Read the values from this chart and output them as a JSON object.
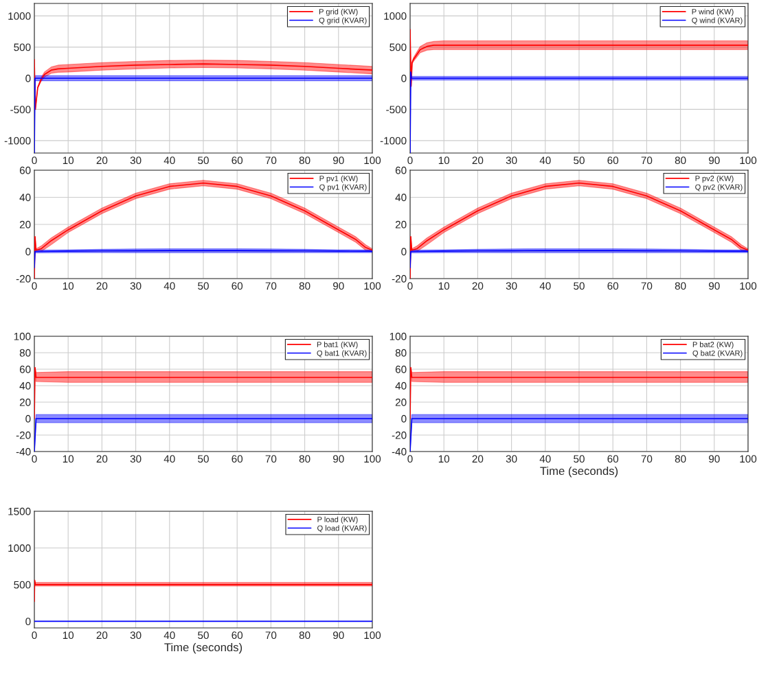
{
  "chart_data": [
    {
      "type": "line",
      "xlim": [
        0,
        100
      ],
      "xticks": [
        0,
        10,
        20,
        30,
        40,
        50,
        60,
        70,
        80,
        90,
        100
      ],
      "ylim": [
        -1200,
        1200
      ],
      "yticks": [
        -1000,
        -500,
        0,
        500,
        1000
      ],
      "grid": true,
      "legend": "top right",
      "series": [
        {
          "name": "P grid (KW)",
          "color": "#ff0000",
          "x": [
            0,
            0.1,
            0.3,
            1,
            2,
            3,
            5,
            7,
            10,
            20,
            30,
            40,
            50,
            60,
            70,
            80,
            90,
            100
          ],
          "values": [
            300,
            0,
            -500,
            -150,
            -20,
            60,
            130,
            150,
            160,
            190,
            210,
            220,
            230,
            220,
            210,
            190,
            160,
            130
          ],
          "lower": [
            300,
            0,
            -500,
            -160,
            -50,
            20,
            80,
            95,
            100,
            130,
            150,
            165,
            170,
            165,
            150,
            130,
            100,
            70
          ],
          "upper": [
            300,
            0,
            -500,
            -140,
            10,
            100,
            180,
            210,
            220,
            250,
            270,
            285,
            290,
            285,
            270,
            250,
            220,
            190
          ]
        },
        {
          "name": "Q grid (KVAR)",
          "color": "#0000ff",
          "x": [
            0,
            0.2,
            10,
            20,
            30,
            40,
            50,
            60,
            70,
            80,
            90,
            100
          ],
          "values": [
            -1200,
            0,
            0,
            0,
            0,
            0,
            0,
            0,
            0,
            0,
            0,
            0
          ],
          "lower": [
            -1200,
            -40,
            -40,
            -40,
            -40,
            -40,
            -40,
            -40,
            -40,
            -40,
            -40,
            -40
          ],
          "upper": [
            -1200,
            40,
            40,
            40,
            40,
            40,
            40,
            40,
            40,
            40,
            40,
            40
          ]
        }
      ]
    },
    {
      "type": "line",
      "xlim": [
        0,
        100
      ],
      "xticks": [
        0,
        10,
        20,
        30,
        40,
        50,
        60,
        70,
        80,
        90,
        100
      ],
      "ylim": [
        -1200,
        1200
      ],
      "yticks": [
        -1000,
        -500,
        0,
        500,
        1000
      ],
      "grid": true,
      "legend": "top right",
      "series": [
        {
          "name": "P wind (KW)",
          "color": "#ff0000",
          "x": [
            0,
            0.3,
            0.6,
            1,
            2,
            3,
            5,
            7,
            10,
            20,
            30,
            40,
            50,
            60,
            70,
            80,
            90,
            100
          ],
          "values": [
            780,
            -130,
            250,
            300,
            380,
            460,
            510,
            530,
            530,
            530,
            530,
            530,
            530,
            530,
            530,
            530,
            530,
            530
          ],
          "lower": [
            780,
            -130,
            230,
            270,
            340,
            410,
            450,
            460,
            460,
            460,
            460,
            460,
            460,
            460,
            460,
            460,
            460,
            460
          ],
          "upper": [
            780,
            -130,
            270,
            330,
            420,
            510,
            570,
            590,
            600,
            600,
            600,
            600,
            600,
            600,
            600,
            600,
            600,
            600
          ]
        },
        {
          "name": "Q wind (KVAR)",
          "color": "#0000ff",
          "x": [
            0,
            0.2,
            0.4,
            10,
            20,
            30,
            40,
            50,
            60,
            70,
            80,
            90,
            100
          ],
          "values": [
            -1200,
            100,
            0,
            0,
            0,
            0,
            0,
            0,
            0,
            0,
            0,
            0,
            0
          ],
          "lower": [
            -1200,
            100,
            -30,
            -30,
            -30,
            -30,
            -30,
            -30,
            -30,
            -30,
            -30,
            -30,
            -30
          ],
          "upper": [
            -1200,
            100,
            30,
            30,
            30,
            30,
            30,
            30,
            30,
            30,
            30,
            30,
            30
          ]
        }
      ]
    },
    {
      "type": "line",
      "xlim": [
        0,
        100
      ],
      "xticks": [
        0,
        10,
        20,
        30,
        40,
        50,
        60,
        70,
        80,
        90,
        100
      ],
      "ylim": [
        -20,
        60
      ],
      "yticks": [
        -20,
        0,
        20,
        40,
        60
      ],
      "grid": true,
      "legend": "top right",
      "series": [
        {
          "name": "P pv1 (KW)",
          "color": "#ff0000",
          "x": [
            0,
            0.2,
            0.5,
            2,
            5,
            10,
            20,
            30,
            40,
            50,
            60,
            70,
            80,
            90,
            95,
            98,
            100
          ],
          "values": [
            -20,
            11,
            1,
            2,
            8,
            16,
            30,
            41,
            48,
            50.5,
            48,
            41,
            30,
            16,
            9,
            3,
            1
          ],
          "lower": [
            -20,
            11,
            0,
            0,
            5,
            14,
            28,
            39,
            46,
            48.5,
            46,
            39,
            28,
            14,
            7,
            1,
            0
          ],
          "upper": [
            -20,
            11,
            2,
            4,
            10,
            18,
            32,
            43,
            50,
            52.5,
            50,
            43,
            32,
            18,
            11,
            5,
            2
          ]
        },
        {
          "name": "Q pv1 (KVAR)",
          "color": "#0000ff",
          "x": [
            0,
            0.2,
            10,
            20,
            30,
            40,
            50,
            60,
            70,
            80,
            90,
            100
          ],
          "values": [
            -12,
            0,
            0.3,
            0.5,
            0.6,
            0.7,
            0.7,
            0.7,
            0.6,
            0.5,
            0.3,
            0.2
          ],
          "lower": [
            -12,
            -1,
            -0.8,
            -0.8,
            -0.9,
            -0.9,
            -0.9,
            -0.9,
            -0.9,
            -0.8,
            -0.8,
            -0.8
          ],
          "upper": [
            -12,
            1,
            1.3,
            1.6,
            1.9,
            2,
            2,
            2,
            1.9,
            1.6,
            1.3,
            1.1
          ]
        }
      ]
    },
    {
      "type": "line",
      "xlim": [
        0,
        100
      ],
      "xticks": [
        0,
        10,
        20,
        30,
        40,
        50,
        60,
        70,
        80,
        90,
        100
      ],
      "ylim": [
        -20,
        60
      ],
      "yticks": [
        -20,
        0,
        20,
        40,
        60
      ],
      "grid": true,
      "legend": "top right",
      "series": [
        {
          "name": "P pv2 (KW)",
          "color": "#ff0000",
          "x": [
            0,
            0.2,
            0.5,
            2,
            5,
            10,
            20,
            30,
            40,
            50,
            60,
            70,
            80,
            90,
            95,
            98,
            100
          ],
          "values": [
            -20,
            11,
            1,
            2,
            8,
            16,
            30,
            41,
            48,
            50.5,
            48,
            41,
            30,
            16,
            9,
            3,
            1
          ],
          "lower": [
            -20,
            11,
            0,
            0,
            5,
            14,
            28,
            39,
            46,
            48.5,
            46,
            39,
            28,
            14,
            7,
            1,
            0
          ],
          "upper": [
            -20,
            11,
            2,
            4,
            10,
            18,
            32,
            43,
            50,
            52.5,
            50,
            43,
            32,
            18,
            11,
            5,
            2
          ]
        },
        {
          "name": "Q pv2 (KVAR)",
          "color": "#0000ff",
          "x": [
            0,
            0.2,
            10,
            20,
            30,
            40,
            50,
            60,
            70,
            80,
            90,
            100
          ],
          "values": [
            -12,
            0,
            0.3,
            0.5,
            0.6,
            0.7,
            0.7,
            0.7,
            0.6,
            0.5,
            0.3,
            0.2
          ],
          "lower": [
            -12,
            -1,
            -0.8,
            -0.8,
            -0.9,
            -0.9,
            -0.9,
            -0.9,
            -0.9,
            -0.8,
            -0.8,
            -0.8
          ],
          "upper": [
            -12,
            1,
            1.3,
            1.6,
            1.9,
            2,
            2,
            2,
            1.9,
            1.6,
            1.3,
            1.1
          ]
        }
      ]
    },
    {
      "type": "line",
      "xlim": [
        0,
        100
      ],
      "xticks": [
        0,
        10,
        20,
        30,
        40,
        50,
        60,
        70,
        80,
        90,
        100
      ],
      "ylim": [
        -40,
        100
      ],
      "yticks": [
        -40,
        -20,
        0,
        20,
        40,
        60,
        80,
        100
      ],
      "grid": true,
      "legend": "top right",
      "series": [
        {
          "name": "P bat1 (KW)",
          "color": "#ff0000",
          "x": [
            0,
            0.2,
            0.5,
            10,
            20,
            30,
            40,
            50,
            60,
            70,
            80,
            90,
            100
          ],
          "values": [
            0,
            62,
            50,
            50,
            50,
            50,
            50,
            50,
            50,
            50,
            50,
            50,
            50
          ],
          "lower": [
            0,
            62,
            45,
            44,
            44,
            44,
            44,
            44,
            44,
            44,
            44,
            44,
            44
          ],
          "upper": [
            0,
            62,
            56,
            57,
            57,
            57,
            57,
            57,
            57,
            57,
            57,
            57,
            57
          ]
        },
        {
          "name": "Q bat1 (KVAR)",
          "color": "#0000ff",
          "x": [
            0,
            0.5,
            10,
            20,
            30,
            40,
            50,
            60,
            70,
            80,
            90,
            100
          ],
          "values": [
            -40,
            0,
            0,
            0,
            0,
            0,
            0,
            0,
            0,
            0,
            0,
            0
          ],
          "lower": [
            -40,
            -5,
            -5,
            -5,
            -5,
            -5,
            -5,
            -5,
            -5,
            -5,
            -5,
            -5
          ],
          "upper": [
            -40,
            5,
            5,
            5,
            5,
            5,
            5,
            5,
            5,
            5,
            5,
            5
          ]
        }
      ]
    },
    {
      "type": "line",
      "xlabel": "Time (seconds)",
      "xlim": [
        0,
        100
      ],
      "xticks": [
        0,
        10,
        20,
        30,
        40,
        50,
        60,
        70,
        80,
        90,
        100
      ],
      "ylim": [
        -40,
        100
      ],
      "yticks": [
        -40,
        -20,
        0,
        20,
        40,
        60,
        80,
        100
      ],
      "grid": true,
      "legend": "top right",
      "series": [
        {
          "name": "P bat2 (KW)",
          "color": "#ff0000",
          "x": [
            0,
            0.2,
            0.5,
            10,
            20,
            30,
            40,
            50,
            60,
            70,
            80,
            90,
            100
          ],
          "values": [
            0,
            62,
            50,
            50,
            50,
            50,
            50,
            50,
            50,
            50,
            50,
            50,
            50
          ],
          "lower": [
            0,
            62,
            45,
            44,
            44,
            44,
            44,
            44,
            44,
            44,
            44,
            44,
            44
          ],
          "upper": [
            0,
            62,
            56,
            57,
            57,
            57,
            57,
            57,
            57,
            57,
            57,
            57,
            57
          ]
        },
        {
          "name": "Q bat2 (KVAR)",
          "color": "#0000ff",
          "x": [
            0,
            0.5,
            10,
            20,
            30,
            40,
            50,
            60,
            70,
            80,
            90,
            100
          ],
          "values": [
            -40,
            0,
            0,
            0,
            0,
            0,
            0,
            0,
            0,
            0,
            0,
            0
          ],
          "lower": [
            -40,
            -5,
            -5,
            -5,
            -5,
            -5,
            -5,
            -5,
            -5,
            -5,
            -5,
            -5
          ],
          "upper": [
            -40,
            5,
            5,
            5,
            5,
            5,
            5,
            5,
            5,
            5,
            5,
            5
          ]
        }
      ]
    },
    {
      "type": "line",
      "xlabel": "Time (seconds)",
      "xlim": [
        0,
        100
      ],
      "xticks": [
        0,
        10,
        20,
        30,
        40,
        50,
        60,
        70,
        80,
        90,
        100
      ],
      "ylim": [
        -90,
        1500
      ],
      "yticks": [
        0,
        500,
        1000,
        1500
      ],
      "grid": true,
      "legend": "top right",
      "series": [
        {
          "name": "P load (KW)",
          "color": "#ff0000",
          "x": [
            0,
            0.1,
            0.3,
            10,
            20,
            30,
            40,
            50,
            60,
            70,
            80,
            90,
            100
          ],
          "values": [
            270,
            560,
            500,
            500,
            500,
            500,
            500,
            500,
            500,
            500,
            500,
            500,
            500
          ],
          "lower": [
            270,
            560,
            480,
            480,
            480,
            480,
            480,
            480,
            480,
            480,
            480,
            480,
            480
          ],
          "upper": [
            270,
            560,
            530,
            530,
            530,
            530,
            530,
            530,
            530,
            530,
            530,
            530,
            530
          ]
        },
        {
          "name": "Q load (KVAR)",
          "color": "#0000ff",
          "x": [
            0,
            100
          ],
          "values": [
            0,
            0
          ]
        }
      ]
    }
  ]
}
